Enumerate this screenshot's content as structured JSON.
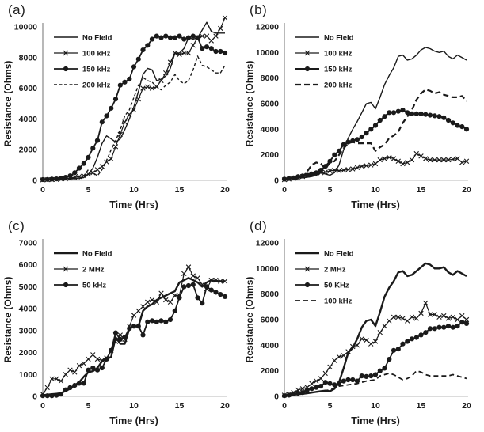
{
  "page": {
    "background": "#ffffff",
    "ink_color": "#1a1a1a",
    "y_axis_color": "#9b9b9b",
    "x_axis_color": "#c6c6c6"
  },
  "chart_data": [
    {
      "id": "a",
      "panel_label": "(a)",
      "type": "line",
      "xlabel": "Time (Hrs)",
      "ylabel": "Resistance (Ohms)",
      "xlim": [
        0,
        20
      ],
      "ylim": [
        0,
        10000
      ],
      "xticks": [
        0,
        5,
        10,
        15,
        20
      ],
      "yticks": [
        0,
        2000,
        4000,
        6000,
        8000,
        10000
      ],
      "grid": false,
      "legend_position": "upper-left-inside",
      "x_start": 0,
      "x_step": 0.5,
      "series": [
        {
          "name": "No Field",
          "line": "solid",
          "marker": "none",
          "width": 1.4,
          "values": [
            50,
            60,
            60,
            70,
            80,
            90,
            120,
            130,
            150,
            180,
            400,
            800,
            1500,
            2400,
            2900,
            2700,
            2500,
            2700,
            3300,
            4000,
            4800,
            5800,
            6900,
            7300,
            7200,
            6500,
            6600,
            6800,
            7300,
            8300,
            8300,
            8600,
            9300,
            9200,
            9300,
            9800,
            10300,
            9700,
            9600,
            9600,
            9600
          ]
        },
        {
          "name": "100 kHz",
          "line": "solid",
          "marker": "x",
          "width": 1.2,
          "values": [
            30,
            40,
            50,
            60,
            80,
            100,
            150,
            200,
            250,
            300,
            400,
            500,
            700,
            900,
            1200,
            1400,
            2200,
            3000,
            3800,
            4300,
            4600,
            5300,
            6000,
            6100,
            6000,
            6100,
            6500,
            7000,
            7700,
            8300,
            8200,
            8300,
            8300,
            8800,
            9300,
            9400,
            9400,
            9100,
            9400,
            9900,
            10600
          ]
        },
        {
          "name": "150 kHz",
          "line": "solid",
          "marker": "circle",
          "width": 1.8,
          "values": [
            50,
            60,
            80,
            100,
            150,
            200,
            300,
            500,
            800,
            1100,
            1500,
            2100,
            2600,
            3800,
            4200,
            4700,
            5300,
            6200,
            6400,
            6600,
            7400,
            7900,
            8500,
            8800,
            9200,
            9400,
            9300,
            9400,
            9300,
            9300,
            9400,
            9200,
            9300,
            9400,
            9300,
            8600,
            8700,
            8600,
            8400,
            8400,
            8300
          ]
        },
        {
          "name": "200 kHz",
          "line": "dashed",
          "dash": "4,2.5",
          "marker": "none",
          "width": 1.4,
          "values": [
            20,
            25,
            30,
            40,
            50,
            60,
            80,
            100,
            100,
            300,
            700,
            500,
            300,
            700,
            1300,
            2000,
            2600,
            3300,
            4200,
            4600,
            5400,
            6200,
            6700,
            6500,
            6400,
            6100,
            5900,
            6200,
            6400,
            6900,
            6500,
            6300,
            6500,
            7200,
            8100,
            7500,
            7400,
            7200,
            7000,
            7000,
            7500
          ]
        }
      ]
    },
    {
      "id": "b",
      "panel_label": "(b)",
      "type": "line",
      "xlabel": "Time (Hrs)",
      "ylabel": "Resistance (Ohms)",
      "xlim": [
        0,
        20
      ],
      "ylim": [
        0,
        12000
      ],
      "xticks": [
        0,
        5,
        10,
        15,
        20
      ],
      "yticks": [
        0,
        2000,
        4000,
        6000,
        8000,
        10000,
        12000
      ],
      "grid": false,
      "legend_position": "upper-left-inside",
      "x_start": 0,
      "x_step": 0.5,
      "series": [
        {
          "name": "No Field",
          "line": "solid",
          "marker": "none",
          "width": 1.4,
          "values": [
            100,
            120,
            150,
            180,
            200,
            250,
            300,
            400,
            600,
            500,
            400,
            600,
            1200,
            2400,
            3300,
            4000,
            4600,
            5300,
            6000,
            6100,
            5600,
            6500,
            7500,
            8200,
            8800,
            9700,
            9800,
            9400,
            9500,
            9800,
            10200,
            10400,
            10300,
            10100,
            10000,
            10100,
            9700,
            9500,
            9800,
            9600,
            9400
          ]
        },
        {
          "name": "100 kHz",
          "line": "solid",
          "marker": "x",
          "width": 1.2,
          "values": [
            50,
            100,
            150,
            200,
            300,
            400,
            500,
            550,
            600,
            650,
            750,
            800,
            750,
            800,
            850,
            900,
            1000,
            1100,
            1150,
            1200,
            1300,
            1600,
            1700,
            1800,
            1700,
            1500,
            1300,
            1400,
            1600,
            2100,
            1900,
            1700,
            1600,
            1600,
            1600,
            1600,
            1600,
            1650,
            1700,
            1400,
            1500
          ]
        },
        {
          "name": "150 kHz",
          "line": "solid",
          "marker": "circle",
          "width": 2,
          "values": [
            100,
            150,
            200,
            300,
            350,
            400,
            500,
            600,
            800,
            1100,
            1500,
            2000,
            2300,
            2800,
            3000,
            3100,
            3200,
            3400,
            3700,
            4000,
            4300,
            4700,
            5000,
            5300,
            5300,
            5400,
            5500,
            5300,
            5200,
            5200,
            5200,
            5150,
            5100,
            5050,
            5000,
            4900,
            4700,
            4500,
            4300,
            4200,
            4000
          ]
        },
        {
          "name": "200 kHz",
          "line": "dashed",
          "dash": "7,4",
          "marker": "none",
          "width": 2.2,
          "values": [
            50,
            80,
            100,
            150,
            250,
            700,
            1200,
            1400,
            1300,
            900,
            1400,
            1500,
            2000,
            2500,
            2900,
            3000,
            2900,
            2900,
            2900,
            2900,
            2300,
            2600,
            2800,
            3300,
            3500,
            3800,
            4500,
            5000,
            5500,
            6300,
            6800,
            7100,
            7000,
            6800,
            6900,
            6700,
            6600,
            6500,
            6500,
            6600,
            6200
          ]
        }
      ]
    },
    {
      "id": "c",
      "panel_label": "(c)",
      "type": "line",
      "xlabel": "Time (Hrs)",
      "ylabel": "Resistance (Ohms)",
      "xlim": [
        0,
        20
      ],
      "ylim": [
        0,
        7000
      ],
      "xticks": [
        0,
        5,
        10,
        15,
        20
      ],
      "yticks": [
        0,
        1000,
        2000,
        3000,
        4000,
        5000,
        6000,
        7000
      ],
      "grid": false,
      "legend_position": "upper-left-inside",
      "x_start": 0,
      "x_step": 0.5,
      "series": [
        {
          "name": "No Field",
          "line": "solid",
          "marker": "none",
          "width": 2.4,
          "values": [
            50,
            80,
            100,
            120,
            150,
            250,
            350,
            500,
            650,
            900,
            1100,
            1150,
            1300,
            1600,
            1700,
            1800,
            2700,
            2400,
            2400,
            3100,
            3200,
            3200,
            3900,
            4100,
            4200,
            4400,
            4500,
            4600,
            4700,
            4800,
            5200,
            5300,
            5400,
            5300,
            5200,
            5000,
            5200,
            5300,
            5250,
            5250,
            5250
          ]
        },
        {
          "name": "2 MHz",
          "line": "solid",
          "marker": "x",
          "width": 1.2,
          "values": [
            100,
            400,
            800,
            800,
            700,
            1000,
            1200,
            1100,
            1400,
            1500,
            1700,
            1900,
            1700,
            1650,
            1750,
            2100,
            2500,
            2800,
            2600,
            3200,
            3700,
            3900,
            4100,
            4300,
            4400,
            4300,
            4700,
            4400,
            4300,
            4600,
            4600,
            5600,
            5900,
            5500,
            5400,
            5100,
            4900,
            5300,
            5300,
            5250,
            5250
          ]
        },
        {
          "name": "50 kHz",
          "line": "solid",
          "marker": "circle",
          "width": 1.8,
          "values": [
            30,
            30,
            30,
            50,
            100,
            300,
            400,
            500,
            600,
            600,
            1200,
            1300,
            1200,
            1300,
            1700,
            2100,
            2900,
            2600,
            2700,
            3100,
            3200,
            3200,
            2800,
            3400,
            3450,
            3400,
            3450,
            3400,
            3500,
            3900,
            4500,
            5000,
            5050,
            5100,
            4500,
            4250,
            5000,
            4850,
            4750,
            4650,
            4550
          ]
        }
      ]
    },
    {
      "id": "d",
      "panel_label": "(d)",
      "type": "line",
      "xlabel": "Time (Hrs)",
      "ylabel": "Resistance (Ohms)",
      "xlim": [
        0,
        20
      ],
      "ylim": [
        0,
        12000
      ],
      "xticks": [
        0,
        5,
        10,
        15,
        20
      ],
      "yticks": [
        0,
        2000,
        4000,
        6000,
        8000,
        10000,
        12000
      ],
      "grid": false,
      "legend_position": "upper-left-inside",
      "x_start": 0,
      "x_step": 0.5,
      "series": [
        {
          "name": "No Field",
          "line": "solid",
          "marker": "none",
          "width": 2.4,
          "values": [
            100,
            120,
            150,
            180,
            200,
            250,
            300,
            350,
            400,
            450,
            400,
            600,
            1100,
            2200,
            3400,
            3800,
            4500,
            5400,
            5900,
            6000,
            5500,
            6600,
            7800,
            8500,
            9000,
            9700,
            9800,
            9400,
            9500,
            9800,
            10100,
            10400,
            10300,
            10000,
            10000,
            10100,
            9700,
            9500,
            9800,
            9600,
            9400
          ]
        },
        {
          "name": "2 MHz",
          "line": "solid",
          "marker": "x",
          "width": 1.2,
          "values": [
            100,
            150,
            300,
            500,
            600,
            700,
            1000,
            1200,
            1400,
            1800,
            2300,
            2800,
            3100,
            3200,
            3500,
            3900,
            4000,
            4500,
            4400,
            4100,
            4300,
            5000,
            5500,
            5900,
            6200,
            6200,
            6100,
            5900,
            6200,
            6100,
            6500,
            7300,
            6400,
            6400,
            6200,
            6300,
            6100,
            6200,
            6000,
            6300,
            6000
          ]
        },
        {
          "name": "50 KHz",
          "line": "solid",
          "marker": "circle",
          "width": 1.8,
          "values": [
            50,
            100,
            200,
            250,
            300,
            500,
            600,
            700,
            800,
            1100,
            1000,
            900,
            1000,
            1200,
            1300,
            1300,
            1200,
            1600,
            1550,
            1600,
            1700,
            2000,
            2200,
            2900,
            3600,
            3700,
            4100,
            4300,
            4500,
            4600,
            4800,
            5000,
            5300,
            5300,
            5400,
            5400,
            5500,
            5400,
            5500,
            5800,
            5700
          ]
        },
        {
          "name": "100 kHz",
          "line": "dashed",
          "dash": "6,4",
          "marker": "none",
          "width": 1.8,
          "values": [
            30,
            50,
            100,
            150,
            200,
            250,
            300,
            350,
            400,
            450,
            500,
            650,
            800,
            850,
            900,
            950,
            1000,
            1100,
            1200,
            1250,
            1300,
            1600,
            1700,
            1800,
            1700,
            1500,
            1300,
            1400,
            1600,
            2000,
            1900,
            1700,
            1600,
            1600,
            1600,
            1600,
            1600,
            1700,
            1600,
            1500,
            1400
          ]
        }
      ]
    }
  ]
}
